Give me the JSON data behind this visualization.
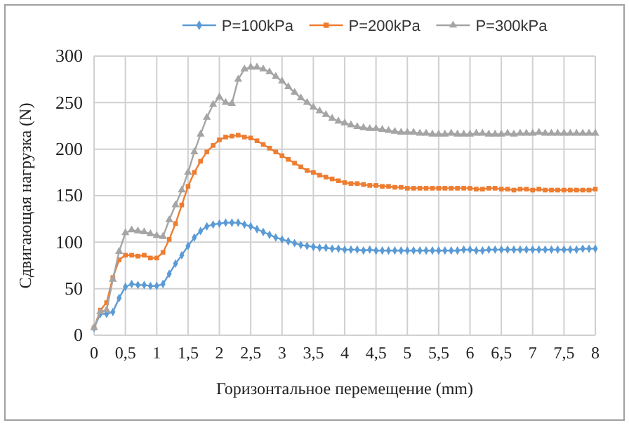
{
  "chart_data": {
    "type": "line",
    "xlabel": "Горизонтальное перемещение  (mm)",
    "ylabel": "Сдвигающая нагрузка  (N)",
    "x": [
      0,
      0.1,
      0.2,
      0.3,
      0.4,
      0.5,
      0.6,
      0.7,
      0.8,
      0.9,
      1,
      1.1,
      1.2,
      1.3,
      1.4,
      1.5,
      1.6,
      1.7,
      1.8,
      1.9,
      2,
      2.1,
      2.2,
      2.3,
      2.4,
      2.5,
      2.6,
      2.7,
      2.8,
      2.9,
      3,
      3.1,
      3.2,
      3.3,
      3.4,
      3.5,
      3.6,
      3.7,
      3.8,
      3.9,
      4,
      4.1,
      4.2,
      4.3,
      4.4,
      4.5,
      4.6,
      4.7,
      4.8,
      4.9,
      5,
      5.1,
      5.2,
      5.3,
      5.4,
      5.5,
      5.6,
      5.7,
      5.8,
      5.9,
      6,
      6.1,
      6.2,
      6.3,
      6.4,
      6.5,
      6.6,
      6.7,
      6.8,
      6.9,
      7,
      7.1,
      7.2,
      7.3,
      7.4,
      7.5,
      7.6,
      7.7,
      7.8,
      7.9,
      8
    ],
    "series": [
      {
        "name": "P=100kPa",
        "color": "#5b9bd5",
        "marker": "diamond",
        "values": [
          8,
          23,
          23,
          25,
          40,
          52,
          55,
          54,
          54,
          53,
          53,
          55,
          66,
          77,
          86,
          96,
          105,
          112,
          117,
          119,
          120,
          121,
          121,
          121,
          119,
          117,
          114,
          111,
          108,
          105,
          103,
          101,
          99,
          97,
          96,
          95,
          94,
          94,
          93,
          93,
          92,
          92,
          92,
          91,
          92,
          91,
          91,
          91,
          91,
          91,
          91,
          91,
          91,
          91,
          91,
          91,
          91,
          91,
          91,
          92,
          92,
          91,
          91,
          92,
          92,
          92,
          92,
          92,
          92,
          92,
          92,
          92,
          92,
          92,
          92,
          92,
          92,
          92,
          93,
          93,
          93
        ]
      },
      {
        "name": "P=200kPa",
        "color": "#ed7d31",
        "marker": "square",
        "values": [
          8,
          27,
          35,
          62,
          81,
          86,
          86,
          85,
          86,
          83,
          83,
          89,
          103,
          120,
          140,
          160,
          175,
          187,
          197,
          204,
          210,
          213,
          214,
          215,
          213,
          212,
          209,
          205,
          201,
          197,
          193,
          189,
          185,
          181,
          177,
          175,
          172,
          170,
          168,
          166,
          164,
          163,
          163,
          162,
          161,
          161,
          160,
          160,
          159,
          159,
          158,
          158,
          158,
          158,
          158,
          158,
          158,
          158,
          158,
          158,
          158,
          157,
          157,
          158,
          158,
          157,
          157,
          156,
          157,
          157,
          156,
          157,
          156,
          156,
          156,
          156,
          156,
          156,
          156,
          156,
          157
        ]
      },
      {
        "name": "P=300kPa",
        "color": "#a5a5a5",
        "marker": "triangle",
        "values": [
          8,
          25,
          27,
          60,
          90,
          110,
          113,
          112,
          111,
          109,
          107,
          106,
          124,
          140,
          156,
          175,
          197,
          216,
          234,
          248,
          256,
          250,
          249,
          275,
          286,
          288,
          288,
          286,
          283,
          278,
          273,
          267,
          261,
          255,
          250,
          245,
          241,
          237,
          233,
          230,
          228,
          226,
          224,
          223,
          222,
          222,
          221,
          220,
          219,
          218,
          218,
          218,
          217,
          217,
          216,
          216,
          216,
          217,
          216,
          216,
          216,
          217,
          217,
          216,
          216,
          216,
          217,
          216,
          217,
          217,
          217,
          218,
          217,
          217,
          217,
          217,
          217,
          217,
          217,
          217,
          217
        ]
      }
    ],
    "xlim": [
      0,
      8
    ],
    "xticks": [
      0,
      {
        "value": 0.5,
        "label": "0,5"
      },
      1,
      {
        "value": 1.5,
        "label": "1,5"
      },
      2,
      {
        "value": 2.5,
        "label": "2,5"
      },
      3,
      {
        "value": 3.5,
        "label": "3,5"
      },
      4,
      {
        "value": 4.5,
        "label": "4,5"
      },
      5,
      {
        "value": 5.5,
        "label": "5,5"
      },
      6,
      {
        "value": 6.5,
        "label": "6,5"
      },
      7,
      {
        "value": 7.5,
        "label": "7,5"
      },
      8
    ],
    "ylim": [
      0,
      300
    ],
    "yticks": [
      0,
      50,
      100,
      150,
      200,
      250,
      300
    ],
    "grid": true,
    "legend": "top"
  }
}
